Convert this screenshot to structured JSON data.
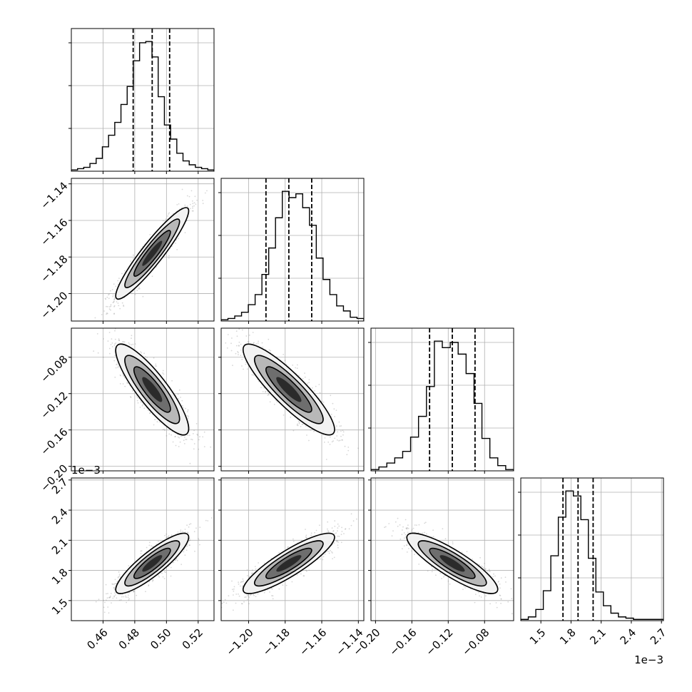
{
  "chart_data": {
    "type": "corner",
    "grid": true,
    "colors": {
      "ink": "#000000",
      "grid": "#b0b0b0",
      "sample": "#8c8c8c"
    },
    "quantiles_line_style": "dashed",
    "parameters": [
      {
        "range": [
          0.44,
          0.53
        ],
        "ticks": [
          0.46,
          0.48,
          0.5,
          0.52
        ],
        "tick_labels": [
          "0.46",
          "0.48",
          "0.50",
          "0.52"
        ],
        "offset_text": "",
        "quantiles": [
          0.479,
          0.491,
          0.502
        ],
        "mean": 0.491,
        "sd": 0.0115,
        "hist_counts": [
          1,
          2,
          3,
          6,
          10,
          19,
          28,
          38,
          52,
          66,
          86,
          100,
          101,
          89,
          58,
          36,
          25,
          14,
          8,
          5,
          3,
          2,
          1
        ]
      },
      {
        "range": [
          -1.215,
          -1.137
        ],
        "ticks": [
          -1.2,
          -1.18,
          -1.16,
          -1.14
        ],
        "tick_labels": [
          "−1.20",
          "−1.18",
          "−1.16",
          "−1.14"
        ],
        "offset_text": "",
        "quantiles": [
          -1.1905,
          -1.178,
          -1.1655
        ],
        "mean": -1.178,
        "sd": 0.0125,
        "hist_counts": [
          1,
          2,
          4,
          7,
          13,
          21,
          37,
          58,
          82,
          103,
          98,
          101,
          90,
          76,
          50,
          33,
          21,
          12,
          8,
          3,
          2
        ]
      },
      {
        "range": [
          -0.205,
          -0.048
        ],
        "ticks": [
          -0.2,
          -0.16,
          -0.12,
          -0.08
        ],
        "tick_labels": [
          "−0.20",
          "−0.16",
          "−0.12",
          "−0.08"
        ],
        "offset_text": "",
        "quantiles": [
          -0.1405,
          -0.1155,
          -0.0905
        ],
        "mean": -0.1155,
        "sd": 0.025,
        "hist_counts": [
          1,
          3,
          6,
          10,
          15,
          26,
          42,
          65,
          100,
          95,
          99,
          90,
          75,
          52,
          25,
          10,
          4,
          1
        ]
      },
      {
        "range": [
          1.3,
          2.72
        ],
        "ticks": [
          1.5,
          1.8,
          2.1,
          2.4,
          2.7
        ],
        "tick_labels": [
          "1.5",
          "1.8",
          "2.1",
          "2.4",
          "2.7"
        ],
        "offset_text": "1e−3",
        "quantiles": [
          1.72,
          1.87,
          2.02
        ],
        "mean": 1.87,
        "sd": 0.15,
        "hist_counts": [
          1,
          3,
          9,
          24,
          52,
          83,
          104,
          100,
          81,
          50,
          23,
          12,
          6,
          3,
          2,
          1,
          1,
          1,
          1
        ]
      }
    ],
    "correlations": {
      "1-0": 0.93,
      "2-0": -0.86,
      "2-1": -0.88,
      "3-0": 0.87,
      "3-1": 0.87,
      "3-2": -0.86
    }
  }
}
